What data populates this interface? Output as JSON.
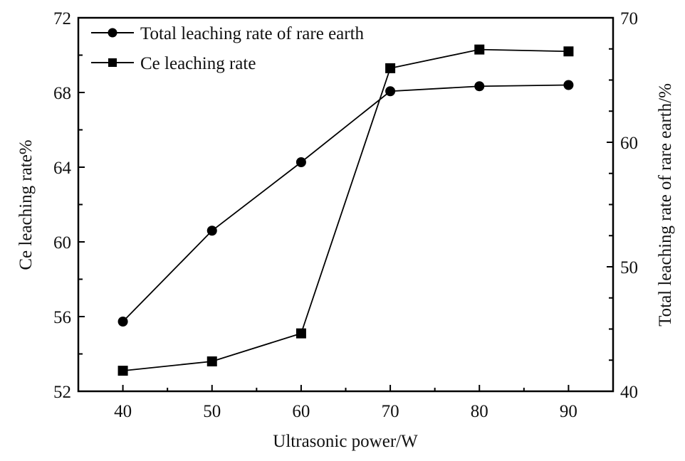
{
  "chart_data": {
    "type": "line",
    "title": "",
    "xlabel": "Ultrasonic power/W",
    "ylabel_left": "Ce leaching rate%",
    "ylabel_right": "Total leaching rate of rare earth/%",
    "x": [
      40,
      50,
      60,
      70,
      80,
      90
    ],
    "xlim": [
      35,
      95
    ],
    "xticks": [
      40,
      50,
      60,
      70,
      80,
      90
    ],
    "ylim_left": [
      52,
      72
    ],
    "yticks_left": [
      52,
      56,
      60,
      64,
      68,
      72
    ],
    "ylim_right": [
      40,
      70
    ],
    "yticks_right": [
      40,
      50,
      60,
      70
    ],
    "grid": false,
    "legend_position": "top-left",
    "series": [
      {
        "name": "Total leaching rate of rare earth",
        "axis": "right",
        "marker": "circle",
        "values": [
          45.6,
          52.9,
          58.4,
          64.1,
          64.5,
          64.6
        ]
      },
      {
        "name": "Ce leaching rate",
        "axis": "left",
        "marker": "square",
        "values": [
          53.1,
          53.6,
          55.1,
          69.3,
          70.3,
          70.2
        ]
      }
    ]
  }
}
